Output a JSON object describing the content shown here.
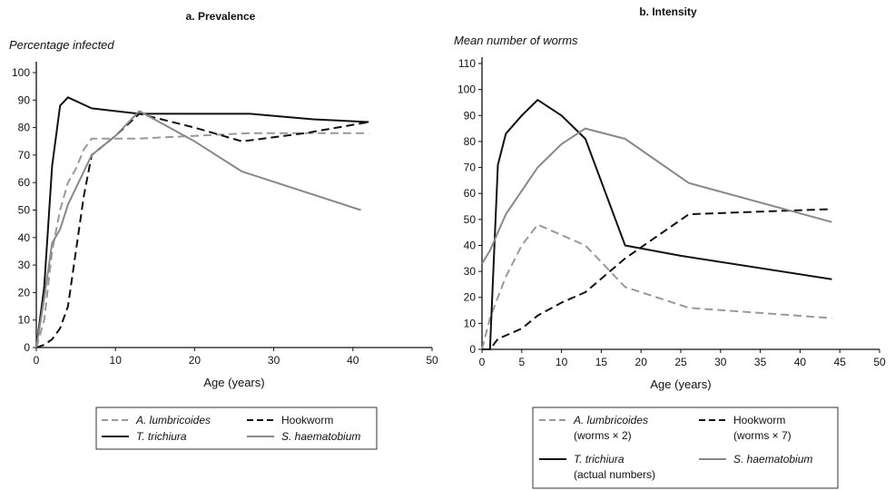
{
  "chart_data": [
    {
      "type": "line",
      "title": "a. Prevalence",
      "ylabel": "Percentage infected",
      "xlabel": "Age (years)",
      "xlim": [
        0,
        50
      ],
      "ylim": [
        0,
        100
      ],
      "xticks": [
        0,
        10,
        20,
        30,
        40,
        50
      ],
      "yticks": [
        0,
        10,
        20,
        30,
        40,
        50,
        60,
        70,
        80,
        90,
        100
      ],
      "legend_position": "bottom",
      "series": [
        {
          "name": "A. lumbricoides",
          "label_lines": [
            "A. lumbricoides"
          ],
          "italic": true,
          "style": "dash",
          "color": "#999999",
          "points": [
            [
              0,
              0
            ],
            [
              1,
              10
            ],
            [
              2,
              35
            ],
            [
              3,
              50
            ],
            [
              4,
              60
            ],
            [
              5,
              65
            ],
            [
              6,
              72
            ],
            [
              7,
              76
            ],
            [
              13,
              76
            ],
            [
              20,
              77
            ],
            [
              27,
              78
            ],
            [
              42,
              78
            ]
          ]
        },
        {
          "name": "Hookworm",
          "label_lines": [
            "Hookworm"
          ],
          "italic": false,
          "style": "dash",
          "color": "#111111",
          "points": [
            [
              0,
              0
            ],
            [
              1,
              1
            ],
            [
              2,
              3
            ],
            [
              3,
              7
            ],
            [
              4,
              15
            ],
            [
              5,
              35
            ],
            [
              6,
              55
            ],
            [
              7,
              70
            ],
            [
              10,
              77
            ],
            [
              13,
              85
            ],
            [
              20,
              80
            ],
            [
              26,
              75
            ],
            [
              34,
              78
            ],
            [
              42,
              82
            ]
          ]
        },
        {
          "name": "T. trichiura",
          "label_lines": [
            "T. trichiura"
          ],
          "italic": true,
          "style": "solid",
          "color": "#111111",
          "points": [
            [
              0,
              0
            ],
            [
              1,
              22
            ],
            [
              2,
              66
            ],
            [
              3,
              88
            ],
            [
              4,
              91
            ],
            [
              7,
              87
            ],
            [
              13,
              85
            ],
            [
              27,
              85
            ],
            [
              35,
              83
            ],
            [
              42,
              82
            ]
          ]
        },
        {
          "name": "S. haematobium",
          "label_lines": [
            "S. haematobium"
          ],
          "italic": true,
          "style": "solid",
          "color": "#888888",
          "points": [
            [
              0,
              0
            ],
            [
              1,
              18
            ],
            [
              2,
              38
            ],
            [
              3,
              43
            ],
            [
              4,
              52
            ],
            [
              6,
              64
            ],
            [
              7,
              70
            ],
            [
              10,
              77
            ],
            [
              13,
              86
            ],
            [
              20,
              75
            ],
            [
              26,
              64
            ],
            [
              41,
              50
            ]
          ]
        }
      ]
    },
    {
      "type": "line",
      "title": "b. Intensity",
      "ylabel": "Mean number of worms",
      "xlabel": "Age (years)",
      "xlim": [
        0,
        50
      ],
      "ylim": [
        0,
        110
      ],
      "xticks": [
        0,
        5,
        10,
        15,
        20,
        25,
        30,
        35,
        40,
        45,
        50
      ],
      "yticks": [
        0,
        10,
        20,
        30,
        40,
        50,
        60,
        70,
        80,
        90,
        100,
        110
      ],
      "legend_position": "bottom",
      "series": [
        {
          "name": "A. lumbricoides (worms × 2)",
          "label_lines": [
            "A. lumbricoides",
            "(worms × 2)"
          ],
          "italic": true,
          "style": "dash",
          "color": "#999999",
          "points": [
            [
              0,
              0
            ],
            [
              1,
              12
            ],
            [
              2,
              20
            ],
            [
              3,
              28
            ],
            [
              5,
              40
            ],
            [
              7,
              48
            ],
            [
              13,
              40
            ],
            [
              18,
              24
            ],
            [
              26,
              16
            ],
            [
              44,
              12
            ]
          ]
        },
        {
          "name": "Hookworm (worms × 7)",
          "label_lines": [
            "Hookworm",
            "(worms × 7)"
          ],
          "italic": false,
          "style": "dash",
          "color": "#111111",
          "points": [
            [
              0,
              0
            ],
            [
              1,
              0
            ],
            [
              2,
              4
            ],
            [
              5,
              8
            ],
            [
              7,
              13
            ],
            [
              10,
              18
            ],
            [
              13,
              22
            ],
            [
              18,
              35
            ],
            [
              26,
              52
            ],
            [
              44,
              54
            ]
          ]
        },
        {
          "name": "T. trichiura (actual numbers)",
          "label_lines": [
            "T. trichiura",
            "(actual numbers)"
          ],
          "italic": true,
          "style": "solid",
          "color": "#111111",
          "points": [
            [
              0,
              0
            ],
            [
              1,
              0
            ],
            [
              2,
              71
            ],
            [
              3,
              83
            ],
            [
              5,
              90
            ],
            [
              7,
              96
            ],
            [
              10,
              90
            ],
            [
              13,
              81
            ],
            [
              18,
              40
            ],
            [
              25,
              36
            ],
            [
              44,
              27
            ]
          ]
        },
        {
          "name": "S. haematobium",
          "label_lines": [
            "S. haematobium"
          ],
          "italic": true,
          "style": "solid",
          "color": "#888888",
          "points": [
            [
              0,
              33
            ],
            [
              1,
              38
            ],
            [
              2,
              45
            ],
            [
              3,
              52
            ],
            [
              5,
              61
            ],
            [
              7,
              70
            ],
            [
              10,
              79
            ],
            [
              13,
              85
            ],
            [
              18,
              81
            ],
            [
              26,
              64
            ],
            [
              44,
              49
            ]
          ]
        }
      ]
    }
  ]
}
